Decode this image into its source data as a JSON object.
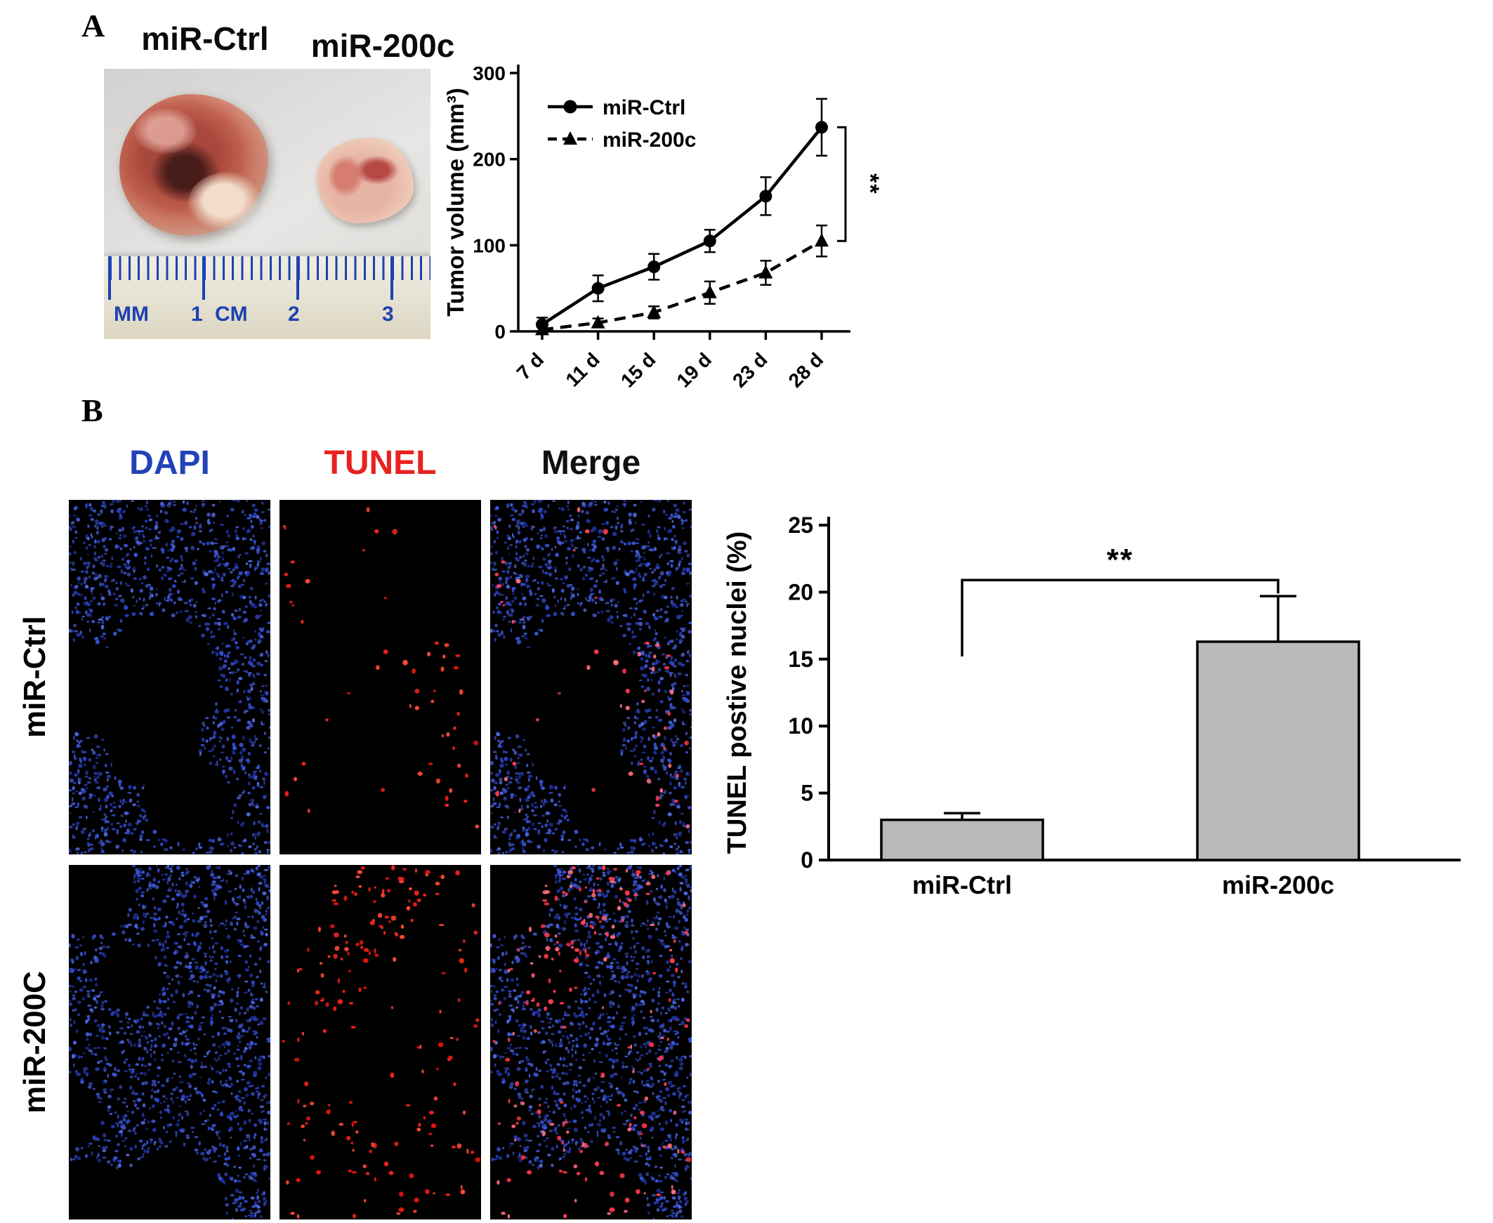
{
  "panel_a": {
    "label": "A",
    "photo": {
      "left_specimen_label": "miR-Ctrl",
      "right_specimen_label": "miR-200c",
      "ruler_labels": [
        "MM",
        "1",
        "CM",
        "2",
        "3"
      ]
    }
  },
  "panel_b": {
    "label": "B",
    "column_headers": [
      {
        "label": "DAPI",
        "color": "#2143b8"
      },
      {
        "label": "TUNEL",
        "color": "#e8221f"
      },
      {
        "label": "Merge",
        "color": "#101010"
      }
    ],
    "row_labels": [
      "miR-Ctrl",
      "miR-200C"
    ],
    "tiles": [
      {
        "row": "miR-Ctrl",
        "col": "DAPI",
        "seed_group": 0,
        "blue": true,
        "red": "none"
      },
      {
        "row": "miR-Ctrl",
        "col": "TUNEL",
        "seed_group": 0,
        "blue": false,
        "red": "sparse"
      },
      {
        "row": "miR-Ctrl",
        "col": "Merge",
        "seed_group": 0,
        "blue": true,
        "red": "sparse"
      },
      {
        "row": "miR-200C",
        "col": "DAPI",
        "seed_group": 1,
        "blue": true,
        "red": "none"
      },
      {
        "row": "miR-200C",
        "col": "TUNEL",
        "seed_group": 1,
        "blue": false,
        "red": "dense"
      },
      {
        "row": "miR-200C",
        "col": "Merge",
        "seed_group": 1,
        "blue": true,
        "red": "dense"
      }
    ]
  },
  "chart_data": [
    {
      "type": "line",
      "title": "",
      "ylabel": "Tumor volume (mm³)",
      "xlabel": "",
      "categories": [
        "7 d",
        "11 d",
        "15 d",
        "19 d",
        "23 d",
        "28 d"
      ],
      "ylim": [
        0,
        300
      ],
      "yticks": [
        0,
        100,
        200,
        300
      ],
      "grid": false,
      "legend_position": "top-left",
      "significance": "**",
      "series": [
        {
          "name": "miR-Ctrl",
          "marker": "circle",
          "line": "solid",
          "values": [
            8,
            50,
            75,
            105,
            157,
            237
          ],
          "errors": [
            8,
            15,
            15,
            13,
            22,
            33
          ]
        },
        {
          "name": "miR-200c",
          "marker": "triangle",
          "line": "dashed",
          "values": [
            2,
            10,
            22,
            45,
            68,
            105
          ],
          "errors": [
            3,
            5,
            7,
            13,
            14,
            18
          ]
        }
      ]
    },
    {
      "type": "bar",
      "title": "",
      "ylabel": "TUNEL postive nuclei (%)",
      "xlabel": "",
      "categories": [
        "miR-Ctrl",
        "miR-200c"
      ],
      "values": [
        3.0,
        16.3
      ],
      "errors": [
        0.5,
        3.4
      ],
      "ylim": [
        0,
        25
      ],
      "yticks": [
        0,
        5,
        10,
        15,
        20,
        25
      ],
      "grid": false,
      "bar_color": "#b9b9b9",
      "significance": "**"
    }
  ]
}
